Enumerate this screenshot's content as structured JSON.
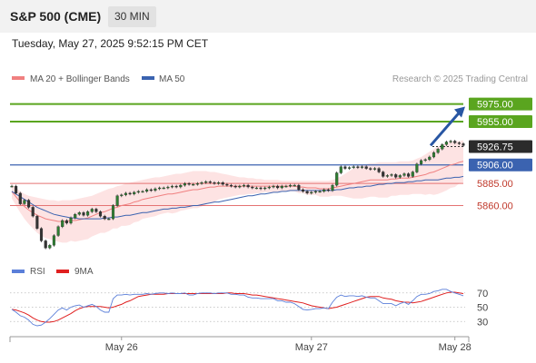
{
  "header": {
    "title": "S&P 500 (CME)",
    "timeframe": "30 MIN",
    "datetime": "Tuesday, May 27, 2025 9:52:15 PM CET"
  },
  "legend": {
    "ma20": "MA 20 + Bollinger Bands",
    "ma50": "MA 50",
    "source": "Research © 2025 Trading Central",
    "rsi": "RSI",
    "rsi_ma": "9MA"
  },
  "colors": {
    "candle": "#2e7d32",
    "ma20": "#f08080",
    "bollinger_fill": "#fde0e0",
    "ma50": "#3b63b0",
    "resistance": "#5aa51f",
    "pivot": "#3b63b0",
    "support": "#e57373",
    "arrow": "#2856a3",
    "rsi": "#5b7fd9",
    "rsi_ma": "#e02020"
  },
  "chart_data": [
    {
      "type": "candlestick",
      "x_ticks": [
        "May 26",
        "May 27",
        "May 28"
      ],
      "ylim": [
        5805,
        5990
      ],
      "levels": [
        {
          "label": "5975.00",
          "value": 5975.0,
          "kind": "resistance"
        },
        {
          "label": "5955.00",
          "value": 5955.0,
          "kind": "resistance"
        },
        {
          "label": "5926.75",
          "value": 5926.75,
          "kind": "last"
        },
        {
          "label": "5906.00",
          "value": 5906.0,
          "kind": "pivot"
        },
        {
          "label": "5885.00",
          "value": 5885.0,
          "kind": "support"
        },
        {
          "label": "5860.00",
          "value": 5860.0,
          "kind": "support"
        }
      ],
      "close": [
        5882,
        5874,
        5862,
        5866,
        5858,
        5848,
        5834,
        5820,
        5812,
        5815,
        5826,
        5836,
        5843,
        5840,
        5846,
        5850,
        5852,
        5849,
        5853,
        5856,
        5853,
        5848,
        5845,
        5845,
        5860,
        5871,
        5872,
        5874,
        5873,
        5875,
        5876,
        5876,
        5878,
        5877,
        5879,
        5880,
        5880,
        5881,
        5882,
        5881,
        5883,
        5885,
        5884,
        5884,
        5885,
        5886,
        5887,
        5886,
        5885,
        5886,
        5884,
        5883,
        5882,
        5881,
        5882,
        5883,
        5881,
        5880,
        5880,
        5879,
        5880,
        5881,
        5882,
        5880,
        5882,
        5882,
        5883,
        5883,
        5878,
        5876,
        5874,
        5875,
        5876,
        5876,
        5878,
        5877,
        5883,
        5897,
        5904,
        5902,
        5903,
        5904,
        5903,
        5904,
        5902,
        5901,
        5902,
        5898,
        5893,
        5894,
        5895,
        5892,
        5894,
        5896,
        5893,
        5898,
        5907,
        5911,
        5912,
        5915,
        5920,
        5924,
        5929,
        5932,
        5933,
        5931,
        5930,
        5928
      ],
      "ma20": [
        5876,
        5870,
        5864,
        5859,
        5855,
        5852,
        5849,
        5847,
        5845,
        5844,
        5843,
        5842,
        5842,
        5842,
        5843,
        5843,
        5844,
        5845,
        5846,
        5848,
        5850,
        5852,
        5853,
        5855,
        5857,
        5858,
        5860,
        5861,
        5862,
        5864,
        5865,
        5867,
        5868,
        5869,
        5870,
        5871,
        5872,
        5873,
        5873,
        5874,
        5875,
        5876,
        5877,
        5878,
        5878,
        5879,
        5880,
        5881,
        5881,
        5882,
        5882,
        5882,
        5882,
        5882,
        5882,
        5882,
        5882,
        5882,
        5882,
        5882,
        5882,
        5882,
        5882,
        5882,
        5882,
        5882,
        5882,
        5882,
        5881,
        5881,
        5880,
        5880,
        5880,
        5879,
        5879,
        5879,
        5880,
        5881,
        5882,
        5883,
        5884,
        5885,
        5886,
        5887,
        5888,
        5889,
        5889,
        5889,
        5889,
        5889,
        5890,
        5890,
        5891,
        5891,
        5891,
        5892,
        5893,
        5894,
        5895,
        5897,
        5898,
        5900,
        5902,
        5904,
        5906,
        5907,
        5909,
        5910
      ],
      "ma50": [
        5876,
        5873,
        5870,
        5867,
        5864,
        5861,
        5858,
        5856,
        5854,
        5852,
        5850,
        5849,
        5848,
        5847,
        5846,
        5846,
        5845,
        5845,
        5845,
        5845,
        5845,
        5845,
        5846,
        5846,
        5847,
        5847,
        5848,
        5849,
        5849,
        5850,
        5851,
        5852,
        5852,
        5853,
        5854,
        5855,
        5856,
        5856,
        5857,
        5857,
        5858,
        5858,
        5859,
        5860,
        5860,
        5861,
        5862,
        5863,
        5864,
        5864,
        5865,
        5866,
        5867,
        5868,
        5869,
        5870,
        5871,
        5871,
        5872,
        5873,
        5873,
        5874,
        5875,
        5875,
        5876,
        5876,
        5877,
        5877,
        5877,
        5877,
        5877,
        5877,
        5877,
        5877,
        5877,
        5877,
        5877,
        5878,
        5878,
        5879,
        5880,
        5880,
        5881,
        5881,
        5882,
        5882,
        5883,
        5884,
        5884,
        5885,
        5885,
        5886,
        5886,
        5886,
        5887,
        5887,
        5888,
        5888,
        5889,
        5889,
        5889,
        5889,
        5890,
        5891,
        5891,
        5892,
        5892,
        5893
      ],
      "bb_upper": [
        5884,
        5880,
        5876,
        5873,
        5871,
        5870,
        5869,
        5868,
        5867,
        5866,
        5866,
        5865,
        5866,
        5866,
        5866,
        5867,
        5868,
        5869,
        5870,
        5871,
        5873,
        5875,
        5877,
        5879,
        5880,
        5882,
        5883,
        5885,
        5886,
        5887,
        5888,
        5889,
        5890,
        5891,
        5892,
        5892,
        5893,
        5894,
        5895,
        5896,
        5896,
        5897,
        5898,
        5899,
        5899,
        5899,
        5899,
        5898,
        5898,
        5897,
        5896,
        5895,
        5894,
        5893,
        5892,
        5892,
        5891,
        5891,
        5890,
        5890,
        5889,
        5889,
        5889,
        5889,
        5888,
        5888,
        5888,
        5888,
        5888,
        5888,
        5888,
        5888,
        5888,
        5888,
        5888,
        5888,
        5889,
        5891,
        5893,
        5896,
        5899,
        5902,
        5904,
        5906,
        5907,
        5908,
        5908,
        5909,
        5909,
        5909,
        5909,
        5909,
        5910,
        5910,
        5910,
        5911,
        5913,
        5915,
        5918,
        5921,
        5924,
        5927,
        5929,
        5931,
        5932,
        5933,
        5933,
        5934
      ],
      "bb_lower": [
        5868,
        5860,
        5852,
        5845,
        5839,
        5834,
        5829,
        5826,
        5823,
        5822,
        5820,
        5819,
        5818,
        5818,
        5820,
        5819,
        5820,
        5821,
        5822,
        5825,
        5827,
        5829,
        5829,
        5831,
        5834,
        5834,
        5837,
        5837,
        5838,
        5841,
        5842,
        5845,
        5846,
        5847,
        5848,
        5850,
        5851,
        5852,
        5851,
        5852,
        5854,
        5855,
        5856,
        5857,
        5857,
        5859,
        5861,
        5864,
        5864,
        5867,
        5868,
        5869,
        5870,
        5871,
        5872,
        5872,
        5873,
        5873,
        5874,
        5874,
        5875,
        5875,
        5875,
        5875,
        5876,
        5876,
        5876,
        5876,
        5874,
        5874,
        5872,
        5872,
        5872,
        5870,
        5870,
        5870,
        5871,
        5871,
        5871,
        5870,
        5869,
        5868,
        5868,
        5868,
        5869,
        5870,
        5870,
        5869,
        5869,
        5869,
        5871,
        5871,
        5872,
        5872,
        5872,
        5873,
        5873,
        5873,
        5872,
        5873,
        5872,
        5873,
        5875,
        5877,
        5880,
        5881,
        5885,
        5886
      ]
    },
    {
      "type": "line",
      "x_ticks": [
        "May 26",
        "May 27",
        "May 28"
      ],
      "ylim": [
        10,
        90
      ],
      "y_ticks": [
        70,
        50,
        30
      ],
      "rsi": [
        47,
        43,
        38,
        36,
        32,
        26,
        24,
        25,
        29,
        34,
        40,
        46,
        49,
        46,
        50,
        52,
        53,
        50,
        52,
        54,
        51,
        46,
        43,
        43,
        62,
        67,
        67,
        68,
        67,
        68,
        68,
        68,
        69,
        68,
        69,
        70,
        70,
        69,
        70,
        69,
        69,
        70,
        67,
        67,
        69,
        70,
        70,
        70,
        69,
        70,
        70,
        70,
        68,
        68,
        67,
        67,
        64,
        63,
        63,
        62,
        62,
        62,
        62,
        59,
        59,
        57,
        57,
        55,
        51,
        47,
        46,
        47,
        48,
        48,
        49,
        48,
        57,
        64,
        67,
        65,
        66,
        66,
        65,
        66,
        64,
        63,
        63,
        59,
        55,
        55,
        55,
        52,
        55,
        57,
        54,
        59,
        65,
        68,
        68,
        69,
        72,
        73,
        75,
        75,
        72,
        70,
        68,
        66
      ],
      "rsi_ma": [
        47,
        46,
        44,
        42,
        39,
        35,
        32,
        30,
        29,
        29,
        30,
        32,
        35,
        38,
        41,
        45,
        48,
        50,
        51,
        51,
        51,
        51,
        50,
        49,
        50,
        52,
        54,
        57,
        59,
        62,
        65,
        66,
        67,
        68,
        68,
        68,
        68,
        69,
        69,
        69,
        69,
        69,
        69,
        69,
        69,
        69,
        69,
        69,
        69,
        69,
        69,
        70,
        70,
        69,
        69,
        69,
        68,
        67,
        67,
        66,
        65,
        64,
        63,
        62,
        61,
        60,
        59,
        58,
        57,
        56,
        54,
        52,
        51,
        50,
        49,
        48,
        49,
        50,
        52,
        54,
        56,
        58,
        60,
        62,
        64,
        65,
        65,
        65,
        63,
        62,
        61,
        59,
        58,
        57,
        57,
        56,
        57,
        58,
        60,
        62,
        64,
        66,
        68,
        70,
        71,
        71,
        70,
        69
      ]
    }
  ]
}
